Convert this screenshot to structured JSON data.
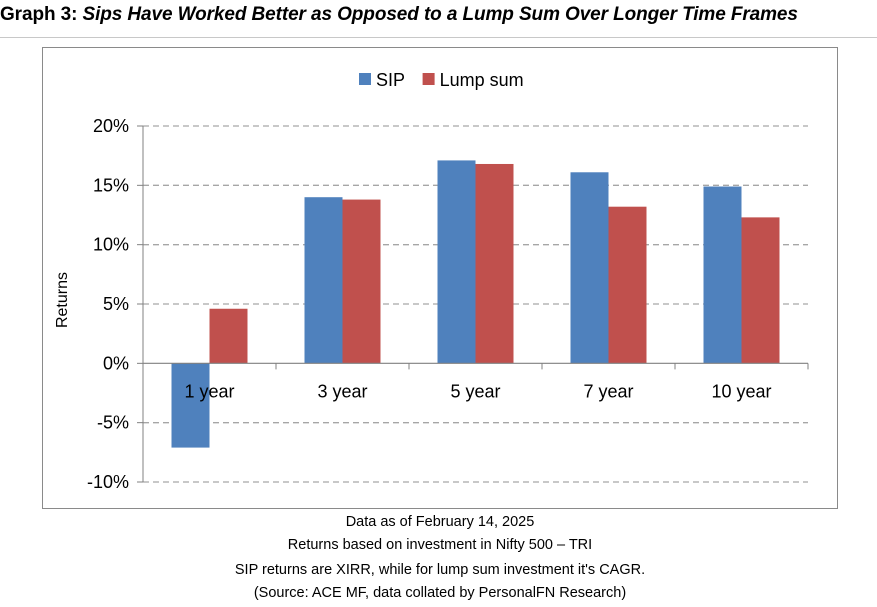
{
  "header": {
    "graph_label": "Graph 3:",
    "subtitle": "Sips Have Worked Better as Opposed to a Lump Sum Over Longer Time Frames"
  },
  "chart_data": {
    "type": "bar",
    "categories": [
      "1 year",
      "3 year",
      "5 year",
      "7 year",
      "10 year"
    ],
    "series": [
      {
        "name": "SIP",
        "color": "#4F81BD",
        "values": [
          -7.1,
          14.0,
          17.1,
          16.1,
          14.9
        ]
      },
      {
        "name": "Lump sum",
        "color": "#C0504D",
        "values": [
          4.6,
          13.8,
          16.8,
          13.2,
          12.3
        ]
      }
    ],
    "ylabel": "Returns",
    "ylim": [
      -10,
      20
    ],
    "yticks": [
      20,
      15,
      10,
      5,
      0,
      -5,
      -10
    ],
    "ytick_labels": [
      "20%",
      "15%",
      "10%",
      "5%",
      "0%",
      "-5%",
      "-10%"
    ],
    "grid": true,
    "legend_position": "top-center"
  },
  "footnotes": [
    "Data as of February 14, 2025",
    "Returns based on investment in Nifty 500 – TRI",
    "SIP returns are XIRR, while for lump sum investment it's CAGR.",
    "(Source: ACE MF, data collated by PersonalFN Research)"
  ]
}
